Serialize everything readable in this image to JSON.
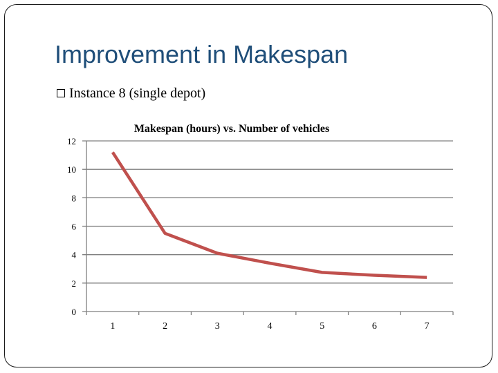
{
  "slide": {
    "title": "Improvement in Makespan",
    "bullet": "Instance 8  (single depot)"
  },
  "colors": {
    "title": "#1f4e79",
    "line": "#c0504d",
    "grid": "#7f7f7f"
  },
  "chart_data": {
    "type": "line",
    "title": "Makespan (hours)  vs. Number of vehicles",
    "xlabel": "",
    "ylabel": "",
    "categories": [
      "1",
      "2",
      "3",
      "4",
      "5",
      "6",
      "7"
    ],
    "series": [
      {
        "values": [
          11.2,
          5.5,
          4.1,
          3.4,
          2.75,
          2.55,
          2.4
        ]
      }
    ],
    "ylim": [
      0,
      12
    ],
    "yticks": [
      "0",
      "2",
      "4",
      "6",
      "8",
      "10",
      "12"
    ],
    "grid": true,
    "legend": "none"
  }
}
